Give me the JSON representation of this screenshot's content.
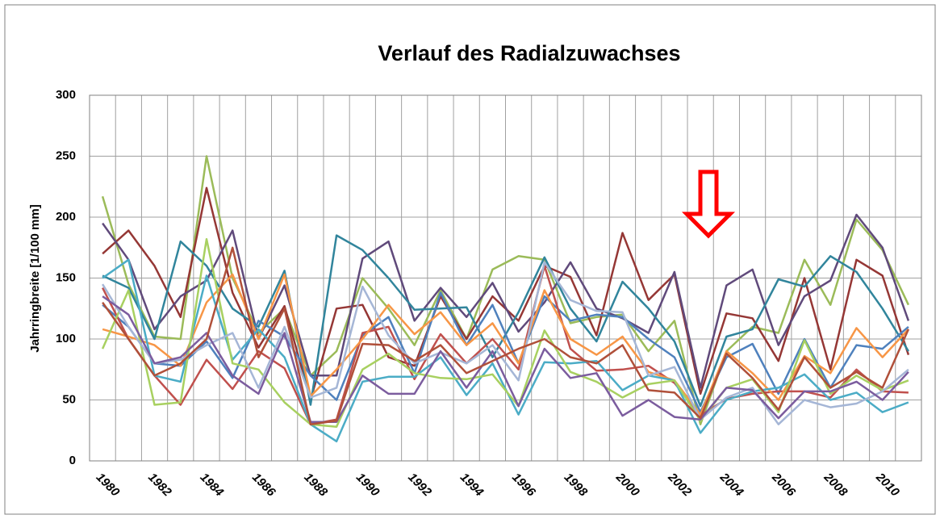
{
  "chart_data": {
    "type": "line",
    "title": "Verlauf des Radialzuwachses",
    "y_label": "Jahrringbreite [1/100 mm]",
    "categories": [
      "1980",
      null,
      "1982",
      null,
      "1984",
      null,
      "1986",
      null,
      "1988",
      null,
      "1990",
      null,
      "1992",
      null,
      "1994",
      null,
      "1996",
      null,
      "1998",
      null,
      "2000",
      null,
      "2002",
      null,
      "2004",
      null,
      "2006",
      null,
      "2008",
      null,
      "2010",
      null
    ],
    "ylim": [
      0,
      300
    ],
    "yticks": [
      0,
      50,
      100,
      150,
      200,
      250,
      300
    ],
    "grid": true,
    "series": [
      {
        "color": "#9BBB59",
        "values": [
          217,
          145,
          102,
          100,
          250,
          150,
          105,
          125,
          70,
          90,
          150,
          125,
          95,
          140,
          100,
          157,
          168,
          165,
          113,
          118,
          120,
          90,
          115,
          30,
          90,
          110,
          105,
          165,
          128,
          198,
          173,
          128
        ]
      },
      {
        "color": "#953735",
        "values": [
          170,
          189,
          160,
          118,
          224,
          138,
          93,
          127,
          50,
          125,
          128,
          85,
          78,
          135,
          100,
          135,
          115,
          160,
          151,
          103,
          187,
          132,
          153,
          55,
          121,
          117,
          82,
          150,
          75,
          165,
          152,
          87
        ]
      },
      {
        "color": "#604A7B",
        "values": [
          195,
          165,
          108,
          135,
          148,
          189,
          100,
          144,
          70,
          70,
          166,
          180,
          115,
          142,
          118,
          146,
          106,
          130,
          163,
          125,
          117,
          105,
          155,
          60,
          144,
          157,
          95,
          135,
          148,
          202,
          175,
          115
        ]
      },
      {
        "color": "#31859C",
        "values": [
          152,
          142,
          100,
          180,
          160,
          125,
          110,
          156,
          46,
          185,
          173,
          150,
          124,
          125,
          126,
          85,
          122,
          167,
          125,
          98,
          147,
          125,
          98,
          45,
          102,
          108,
          149,
          143,
          168,
          155,
          125,
          90
        ]
      },
      {
        "color": "#4F81BD",
        "values": [
          128,
          110,
          80,
          78,
          98,
          68,
          115,
          102,
          70,
          50,
          103,
          118,
          72,
          138,
          95,
          128,
          80,
          135,
          115,
          120,
          118,
          100,
          85,
          40,
          85,
          96,
          55,
          100,
          60,
          95,
          92,
          110
        ]
      },
      {
        "color": "#C0504D",
        "values": [
          142,
          100,
          70,
          46,
          83,
          59,
          90,
          76,
          30,
          34,
          105,
          110,
          67,
          104,
          80,
          100,
          75,
          160,
          92,
          74,
          75,
          78,
          64,
          37,
          51,
          55,
          57,
          57,
          52,
          75,
          57,
          56
        ]
      },
      {
        "color": "#F79646",
        "values": [
          108,
          102,
          95,
          78,
          130,
          153,
          100,
          153,
          53,
          75,
          100,
          128,
          104,
          122,
          95,
          113,
          80,
          140,
          100,
          87,
          102,
          73,
          66,
          38,
          90,
          72,
          50,
          86,
          72,
          109,
          85,
          108
        ]
      },
      {
        "color": "#4BACC6",
        "values": [
          150,
          165,
          70,
          65,
          152,
          83,
          108,
          85,
          30,
          16,
          65,
          69,
          69,
          85,
          54,
          80,
          38,
          81,
          80,
          82,
          58,
          70,
          66,
          23,
          50,
          57,
          60,
          71,
          50,
          56,
          40,
          48
        ]
      },
      {
        "color": "#A8D060",
        "values": [
          92,
          140,
          46,
          48,
          182,
          80,
          75,
          48,
          30,
          28,
          75,
          88,
          72,
          68,
          67,
          71,
          45,
          107,
          73,
          65,
          52,
          63,
          66,
          33,
          60,
          67,
          40,
          99,
          55,
          70,
          58,
          66
        ]
      },
      {
        "color": "#A5B6D6",
        "values": [
          145,
          110,
          80,
          83,
          95,
          105,
          60,
          110,
          52,
          60,
          143,
          103,
          80,
          89,
          80,
          95,
          66,
          163,
          132,
          123,
          122,
          70,
          77,
          34,
          52,
          60,
          30,
          50,
          44,
          47,
          57,
          75
        ]
      },
      {
        "color": "#7B5C9E",
        "values": [
          135,
          120,
          80,
          85,
          105,
          70,
          55,
          105,
          32,
          32,
          70,
          55,
          55,
          90,
          60,
          90,
          45,
          92,
          68,
          72,
          37,
          50,
          36,
          34,
          60,
          58,
          35,
          57,
          57,
          65,
          50,
          73
        ]
      },
      {
        "color": "#B0503A",
        "values": [
          130,
          100,
          70,
          80,
          100,
          175,
          85,
          125,
          30,
          33,
          96,
          95,
          82,
          95,
          72,
          82,
          92,
          100,
          85,
          80,
          95,
          58,
          56,
          35,
          88,
          68,
          42,
          85,
          60,
          73,
          60,
          108
        ]
      }
    ]
  }
}
